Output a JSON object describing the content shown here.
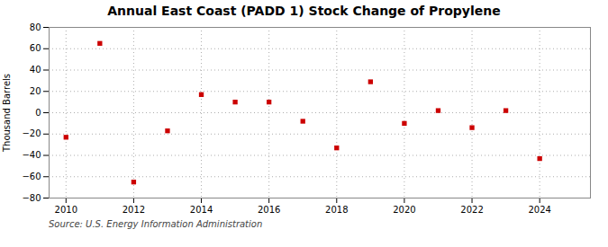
{
  "chart_data": {
    "type": "scatter",
    "title": "Annual East Coast (PADD 1) Stock Change of Propylene",
    "ylabel": "Thousand Barrels",
    "annotation": "Source: U.S. Energy Information Administration",
    "x": [
      2010,
      2011,
      2012,
      2013,
      2014,
      2015,
      2016,
      2017,
      2018,
      2019,
      2020,
      2021,
      2022,
      2023,
      2024
    ],
    "values": [
      -23,
      65,
      -65,
      -17,
      17,
      10,
      10,
      -8,
      -33,
      29,
      -10,
      2,
      -14,
      2,
      -43
    ],
    "color": "#cc0000",
    "marker": "square",
    "xlim": [
      2009.5,
      2025.5
    ],
    "xticks": [
      2010,
      2012,
      2014,
      2016,
      2018,
      2020,
      2022,
      2024
    ],
    "ylim": [
      -80,
      80
    ],
    "yticks": [
      -80,
      -60,
      -40,
      -20,
      0,
      20,
      40,
      60,
      80
    ],
    "grid": true
  }
}
